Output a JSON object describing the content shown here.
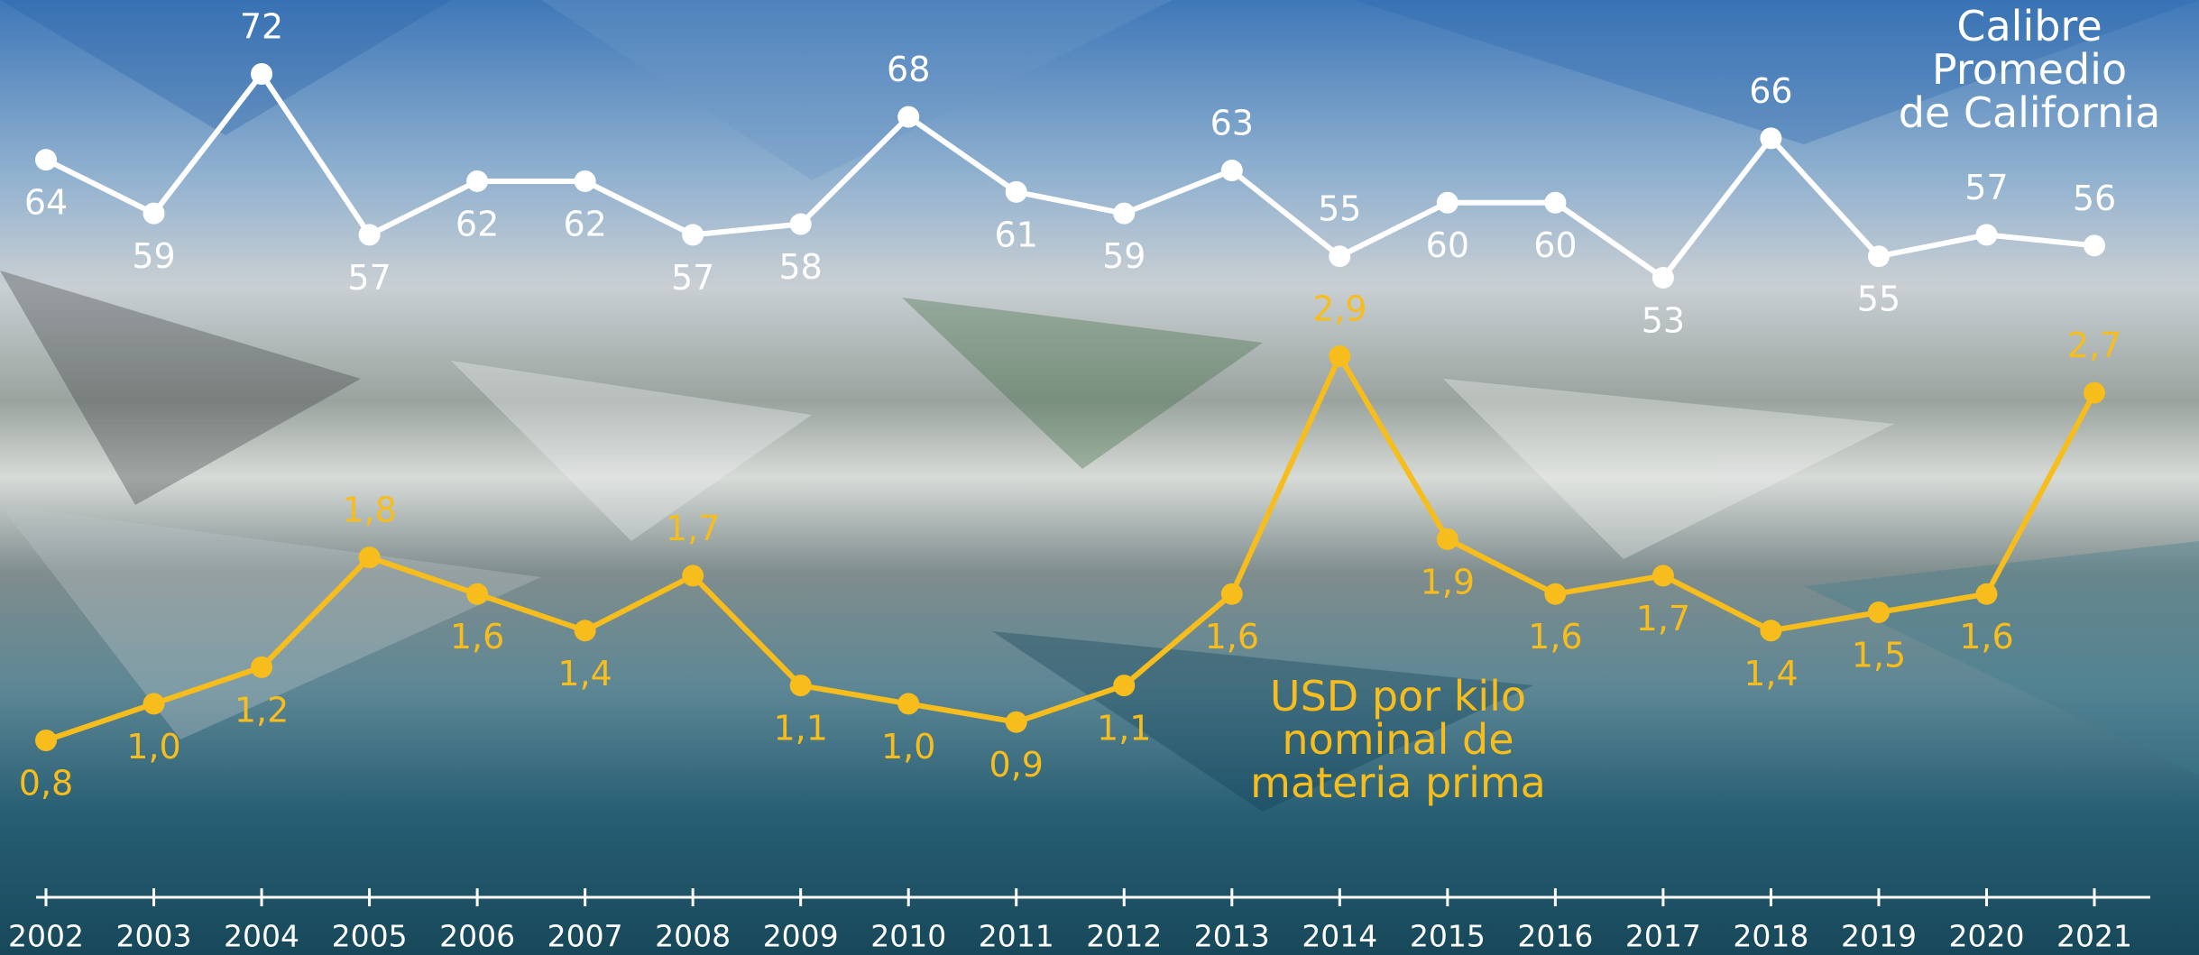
{
  "chart_data": {
    "type": "line",
    "categories": [
      "2002",
      "2003",
      "2004",
      "2005",
      "2006",
      "2007",
      "2008",
      "2009",
      "2010",
      "2011",
      "2012",
      "2013",
      "2014",
      "2015",
      "2016",
      "2017",
      "2018",
      "2019",
      "2020",
      "2021"
    ],
    "series": [
      {
        "name": "Calibre\nPromedio\nde California",
        "color": "#ffffff",
        "values": [
          64,
          59,
          72,
          57,
          62,
          62,
          57,
          58,
          68,
          61,
          59,
          63,
          55,
          60,
          60,
          53,
          66,
          55,
          57,
          56
        ]
      },
      {
        "name": "USD por kilo\nnominal de\nmateria prima",
        "color": "#f6bd1c",
        "axis": "y2",
        "values": [
          0.8,
          1.0,
          1.2,
          1.8,
          1.6,
          1.4,
          1.7,
          1.1,
          1.0,
          0.9,
          1.1,
          1.6,
          2.9,
          1.9,
          1.6,
          1.7,
          1.4,
          1.5,
          1.6,
          2.7
        ],
        "value_labels": [
          "0,8",
          "1,0",
          "1,2",
          "1,8",
          "1,6",
          "1,4",
          "1,7",
          "1,1",
          "1,0",
          "0,9",
          "1,1",
          "1,6",
          "2,9",
          "1,9",
          "1,6",
          "1,7",
          "1,4",
          "1,5",
          "1,6",
          "2,7"
        ]
      }
    ]
  }
}
